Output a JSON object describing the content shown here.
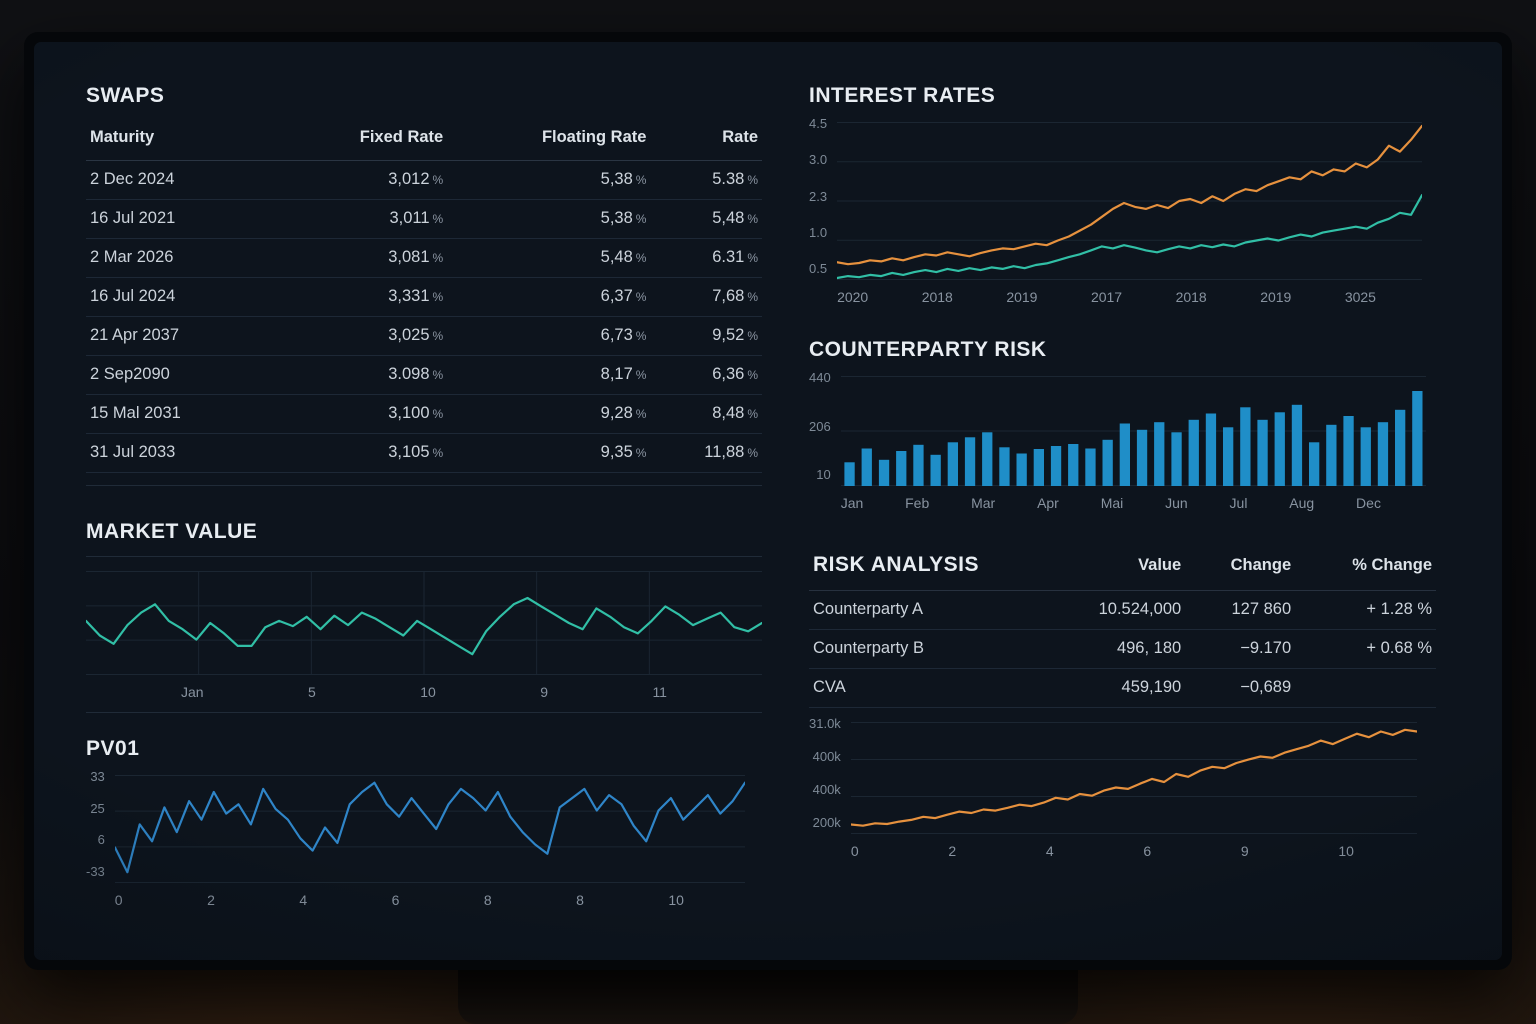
{
  "colors": {
    "screen_bg": "#0d141d",
    "grid": "#1b2632",
    "teal": "#31bfa6",
    "orange": "#e6913e",
    "bar_blue": "#1f8ec8",
    "pv_blue": "#2f85c8",
    "green": "#41d98b"
  },
  "swaps": {
    "title": "SWAPS",
    "columns": [
      "Maturity",
      "Fixed Rate",
      "Floating Rate",
      "Rate"
    ],
    "rows": [
      [
        "2 Dec 2024",
        "3,012 %",
        "5,38 %",
        "5.38 %"
      ],
      [
        "16 Jul 2021",
        "3,011 %",
        "5,38 %",
        "5,48 %"
      ],
      [
        "2 Mar 2026",
        "3,081 %",
        "5,48 %",
        "6.31 %"
      ],
      [
        "16 Jul 2024",
        "3,331 %",
        "6,37 %",
        "7,68 %"
      ],
      [
        "21 Apr 2037",
        "3,025 %",
        "6,73 %",
        "9,52 %"
      ],
      [
        "2 Sep2090",
        "3.098 %",
        "8,17 %",
        "6,36 %"
      ],
      [
        "15 Mal 2031",
        "3,100 %",
        "9,28 %",
        "8,48 %"
      ],
      [
        "31 Jul 2033",
        "3,105 %",
        "9,35 %",
        "11,88 %"
      ]
    ]
  },
  "risk_analysis": {
    "title": "RISK ANALYSIS",
    "columns": [
      "Value",
      "Change",
      "% Change"
    ],
    "rows": [
      {
        "name": "Counterparty A",
        "value": "10.524,000",
        "change": "127 860",
        "pct": "+ 1.28 %",
        "change_class": "dim",
        "pct_class": "green"
      },
      {
        "name": "Counterparty B",
        "value": "496, 180",
        "change": "−9.170",
        "pct": "+ 0.68 %",
        "change_class": "teal",
        "pct_class": "green"
      },
      {
        "name": "CVA",
        "value": "459,190",
        "change": "−0,689",
        "pct": "",
        "change_class": "dim",
        "pct_class": ""
      }
    ]
  },
  "chart_data": [
    {
      "type": "line",
      "title": "INTEREST RATES",
      "ylim": [
        0.5,
        4.5
      ],
      "gridlines": 4,
      "y_labels": [
        "4.5",
        "3.0",
        "2.3",
        "1.0",
        "0.5"
      ],
      "x_labels": [
        "2020",
        "2018",
        "2019",
        "2017",
        "2018",
        "2019",
        "3025"
      ],
      "legend": null,
      "series": [
        {
          "name": "rate-orange",
          "color": "#e6913e",
          "values": [
            0.95,
            0.9,
            0.93,
            1.0,
            0.97,
            1.05,
            1.0,
            1.08,
            1.15,
            1.12,
            1.2,
            1.15,
            1.1,
            1.18,
            1.25,
            1.3,
            1.28,
            1.35,
            1.42,
            1.38,
            1.5,
            1.6,
            1.75,
            1.9,
            2.1,
            2.3,
            2.45,
            2.35,
            2.3,
            2.4,
            2.32,
            2.5,
            2.55,
            2.45,
            2.62,
            2.5,
            2.68,
            2.8,
            2.75,
            2.9,
            3.0,
            3.1,
            3.05,
            3.25,
            3.15,
            3.3,
            3.25,
            3.45,
            3.35,
            3.55,
            3.9,
            3.75,
            4.05,
            4.4
          ]
        },
        {
          "name": "rate-teal",
          "color": "#31bfa6",
          "values": [
            0.55,
            0.6,
            0.57,
            0.63,
            0.6,
            0.68,
            0.63,
            0.7,
            0.75,
            0.7,
            0.78,
            0.73,
            0.8,
            0.75,
            0.82,
            0.78,
            0.85,
            0.8,
            0.88,
            0.92,
            1.0,
            1.08,
            1.15,
            1.25,
            1.35,
            1.3,
            1.38,
            1.32,
            1.25,
            1.2,
            1.28,
            1.35,
            1.3,
            1.38,
            1.33,
            1.4,
            1.35,
            1.45,
            1.5,
            1.55,
            1.5,
            1.58,
            1.65,
            1.6,
            1.7,
            1.75,
            1.8,
            1.85,
            1.8,
            1.95,
            2.05,
            2.2,
            2.15,
            2.65
          ]
        }
      ]
    },
    {
      "type": "bar",
      "title": "COUNTERPARTY RISK",
      "ylim": [
        0,
        440
      ],
      "gridlines": 2,
      "color": "#1f8ec8",
      "y_labels": [
        "440",
        "206",
        "10"
      ],
      "x_labels": [
        "Jan",
        "Feb",
        "Mar",
        "Apr",
        "Mai",
        "Jun",
        "Jul",
        "Aug",
        "Dec"
      ],
      "values": [
        95,
        150,
        105,
        140,
        165,
        125,
        175,
        195,
        215,
        155,
        130,
        148,
        160,
        168,
        150,
        185,
        250,
        225,
        255,
        215,
        265,
        290,
        235,
        315,
        265,
        295,
        325,
        175,
        245,
        280,
        235,
        255,
        305,
        380
      ]
    },
    {
      "type": "line",
      "title": "MARKET VALUE",
      "ylim": [
        0,
        100
      ],
      "gridlines": 3,
      "vgrid": 6,
      "color": "#31bfa6",
      "y_labels": [],
      "x_labels": [
        "Jan",
        "5",
        "10",
        "9",
        "11"
      ],
      "values": [
        52,
        38,
        30,
        48,
        60,
        68,
        52,
        44,
        34,
        50,
        40,
        28,
        28,
        46,
        52,
        47,
        56,
        44,
        57,
        48,
        60,
        54,
        46,
        38,
        52,
        44,
        36,
        28,
        20,
        42,
        56,
        68,
        74,
        66,
        58,
        50,
        44,
        64,
        56,
        46,
        40,
        52,
        66,
        58,
        48,
        54,
        60,
        46,
        42,
        50
      ]
    },
    {
      "type": "line",
      "title": "PV01",
      "ylim": [
        -35,
        35
      ],
      "gridlines": 3,
      "color": "#2f85c8",
      "y_labels": [
        "33",
        "25",
        "6",
        "-33"
      ],
      "x_labels": [
        "0",
        "2",
        "4",
        "6",
        "8",
        "8",
        "10"
      ],
      "values": [
        -12,
        -28,
        3,
        -8,
        14,
        -2,
        18,
        6,
        24,
        10,
        16,
        3,
        26,
        13,
        6,
        -6,
        -14,
        1,
        -9,
        16,
        24,
        30,
        16,
        8,
        20,
        10,
        0,
        16,
        26,
        20,
        12,
        24,
        8,
        -2,
        -10,
        -16,
        14,
        20,
        26,
        12,
        22,
        16,
        2,
        -8,
        12,
        20,
        6,
        14,
        22,
        10,
        18,
        30
      ]
    },
    {
      "type": "line",
      "title": "",
      "ylim": [
        200,
        850
      ],
      "gridlines": 3,
      "color": "#e6913e",
      "y_labels": [
        "31.0k",
        "400k",
        "400k",
        "200k"
      ],
      "x_labels": [
        "0",
        "2",
        "4",
        "6",
        "9",
        "10"
      ],
      "values": [
        255,
        248,
        262,
        258,
        272,
        282,
        300,
        292,
        312,
        330,
        322,
        342,
        336,
        352,
        370,
        362,
        382,
        410,
        400,
        432,
        422,
        452,
        470,
        462,
        492,
        520,
        502,
        548,
        532,
        568,
        590,
        582,
        612,
        632,
        650,
        642,
        672,
        692,
        712,
        742,
        722,
        752,
        782,
        762,
        795,
        775,
        805,
        795
      ]
    }
  ]
}
